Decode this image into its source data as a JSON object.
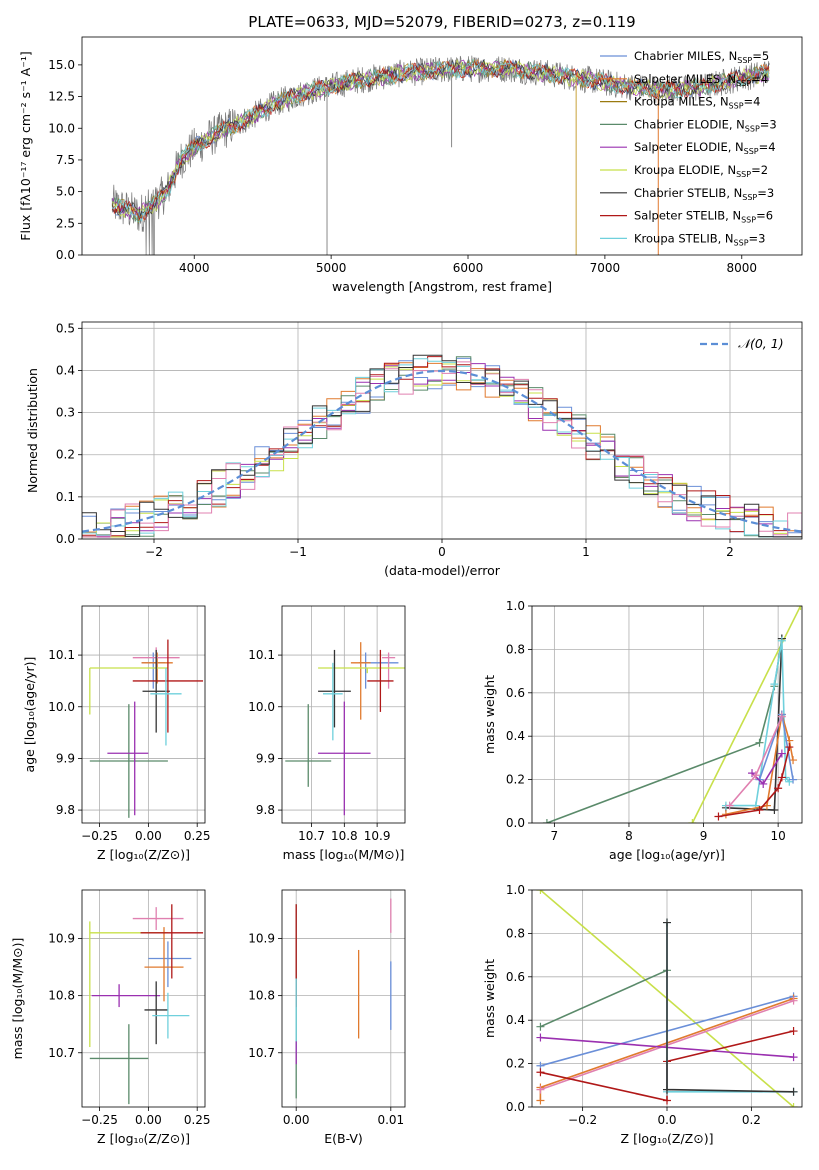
{
  "title": "PLATE=0633, MJD=52079, FIBERID=0273, z=0.119",
  "colors": {
    "chabrier_miles": "#6a8fd8",
    "salpeter_miles": "#e07a2e",
    "kroupa_miles": "#9a7a10",
    "chabrier_elodie": "#5a8a6a",
    "salpeter_elodie": "#9a30b0",
    "kroupa_elodie": "#c8e04a",
    "chabrier_stelib": "#333333",
    "salpeter_stelib": "#b01818",
    "kroupa_stelib": "#6fd0dc",
    "pink": "#e080b0",
    "gaussian": "#5b8ed6",
    "grid": "#b0b0b0"
  },
  "chart_data": [
    {
      "id": "spectrum",
      "type": "line",
      "xlabel": "wavelength [Angstrom, rest frame]",
      "ylabel": "Flux [fλ10⁻¹⁷ erg cm⁻² s⁻¹ A⁻¹]",
      "xlim": [
        3180,
        8440
      ],
      "ylim": [
        0,
        17.2
      ],
      "xticks": [
        4000,
        5000,
        6000,
        7000,
        8000
      ],
      "yticks": [
        0.0,
        2.5,
        5.0,
        7.5,
        10.0,
        12.5,
        15.0
      ],
      "legend_position": "right",
      "legend": [
        {
          "label": "Chabrier MILES, N",
          "sub": "SSP",
          "tail": "=5",
          "color": "#6a8fd8"
        },
        {
          "label": "Salpeter MILES, N",
          "sub": "SSP",
          "tail": "=4",
          "color": "#e07a2e"
        },
        {
          "label": "Kroupa MILES, N",
          "sub": "SSP",
          "tail": "=4",
          "color": "#9a7a10"
        },
        {
          "label": "Chabrier ELODIE, N",
          "sub": "SSP",
          "tail": "=3",
          "color": "#5a8a6a"
        },
        {
          "label": "Salpeter ELODIE, N",
          "sub": "SSP",
          "tail": "=4",
          "color": "#9a30b0"
        },
        {
          "label": "Kroupa ELODIE, N",
          "sub": "SSP",
          "tail": "=2",
          "color": "#c8e04a"
        },
        {
          "label": "Chabrier STELIB, N",
          "sub": "SSP",
          "tail": "=3",
          "color": "#333333"
        },
        {
          "label": "Salpeter STELIB, N",
          "sub": "SSP",
          "tail": "=6",
          "color": "#b01818"
        },
        {
          "label": "Kroupa STELIB, N",
          "sub": "SSP",
          "tail": "=3",
          "color": "#6fd0dc"
        }
      ],
      "continuum": [
        [
          3400,
          4.0
        ],
        [
          3500,
          3.6
        ],
        [
          3600,
          3.2
        ],
        [
          3700,
          4.0
        ],
        [
          3800,
          5.0
        ],
        [
          3900,
          7.5
        ],
        [
          4000,
          8.5
        ],
        [
          4200,
          9.8
        ],
        [
          4400,
          10.8
        ],
        [
          4600,
          12.0
        ],
        [
          4800,
          12.8
        ],
        [
          5000,
          13.3
        ],
        [
          5200,
          13.8
        ],
        [
          5500,
          14.3
        ],
        [
          5800,
          14.6
        ],
        [
          6000,
          14.7
        ],
        [
          6300,
          14.7
        ],
        [
          6600,
          14.3
        ],
        [
          6900,
          13.8
        ],
        [
          7100,
          13.4
        ],
        [
          7400,
          13.0
        ],
        [
          7700,
          13.2
        ],
        [
          8000,
          14.0
        ],
        [
          8200,
          14.4
        ]
      ],
      "data_drops": [
        [
          4970,
          0
        ],
        [
          5880,
          8.5
        ],
        [
          6790,
          0
        ],
        [
          7390,
          0
        ]
      ]
    },
    {
      "id": "residual_histogram",
      "type": "histogram",
      "xlabel": "(data-model)/error",
      "ylabel": "Normed distribution",
      "xlim": [
        -2.5,
        2.5
      ],
      "ylim": [
        0,
        0.515
      ],
      "xticks": [
        -2,
        -1,
        0,
        1,
        2
      ],
      "xtick_labels": [
        "−2",
        "−1",
        "0",
        "1",
        "2"
      ],
      "yticks": [
        0.0,
        0.1,
        0.2,
        0.3,
        0.4,
        0.5
      ],
      "legend": "𝒩(0, 1)",
      "legend_position": "top-right",
      "bin_width": 0.1
    },
    {
      "id": "age_vs_Z",
      "type": "scatter",
      "xlabel": "Z [log₁₀(Z/Z⊙)]",
      "ylabel": "age  [log₁₀(age/yr)]",
      "xlim": [
        -0.34,
        0.29
      ],
      "ylim": [
        9.775,
        10.195
      ],
      "xticks": [
        -0.25,
        0.0,
        0.25
      ],
      "xtick_labels": [
        "−0.25",
        "0.00",
        "0.25"
      ],
      "yticks": [
        9.8,
        9.9,
        10.0,
        10.1
      ],
      "points": [
        {
          "x": 0.025,
          "y": 10.085,
          "ex": [
            0.06,
            0.06
          ],
          "ey": [
            0.05,
            0.02
          ],
          "c": "chabrier_miles"
        },
        {
          "x": 0.045,
          "y": 10.085,
          "ex": [
            0.08,
            0.08
          ],
          "ey": [
            0.04,
            0.02
          ],
          "c": "salpeter_miles"
        },
        {
          "x": 0.04,
          "y": 10.095,
          "ex": [
            0.12,
            0.12
          ],
          "ey": [
            0.03,
            0.02
          ],
          "c": "pink"
        },
        {
          "x": -0.1,
          "y": 9.895,
          "ex": [
            0.2,
            0.2
          ],
          "ey": [
            0.11,
            0.11
          ],
          "c": "chabrier_elodie"
        },
        {
          "x": -0.07,
          "y": 9.91,
          "ex": [
            0.14,
            0.07
          ],
          "ey": [
            0.12,
            0.1
          ],
          "c": "salpeter_elodie"
        },
        {
          "x": -0.3,
          "y": 10.075,
          "ex": [
            0.0,
            0.4
          ],
          "ey": [
            0.09,
            0.0
          ],
          "c": "kroupa_elodie"
        },
        {
          "x": 0.04,
          "y": 10.03,
          "ex": [
            0.07,
            0.07
          ],
          "ey": [
            0.08,
            0.08
          ],
          "c": "chabrier_stelib"
        },
        {
          "x": 0.1,
          "y": 10.05,
          "ex": [
            0.18,
            0.18
          ],
          "ey": [
            0.1,
            0.08
          ],
          "c": "salpeter_stelib"
        },
        {
          "x": 0.09,
          "y": 10.025,
          "ex": [
            0.08,
            0.08
          ],
          "ey": [
            0.1,
            0.05
          ],
          "c": "kroupa_stelib"
        }
      ]
    },
    {
      "id": "age_vs_mass",
      "type": "scatter",
      "xlabel": "mass [log₁₀(M/M⊙)]",
      "ylabel": "",
      "xlim": [
        10.61,
        10.985
      ],
      "ylim": [
        9.775,
        10.195
      ],
      "xticks": [
        10.7,
        10.8,
        10.9
      ],
      "yticks": [
        9.8,
        9.9,
        10.0,
        10.1
      ],
      "points": [
        {
          "x": 10.865,
          "y": 10.085,
          "ex": [
            0.02,
            0.1
          ],
          "ey": [
            0.05,
            0.02
          ],
          "c": "chabrier_miles"
        },
        {
          "x": 10.85,
          "y": 10.085,
          "ex": [
            0.03,
            0.03
          ],
          "ey": [
            0.11,
            0.04
          ],
          "c": "salpeter_miles"
        },
        {
          "x": 10.935,
          "y": 10.095,
          "ex": [
            0.02,
            0.02
          ],
          "ey": [
            0.06,
            0.01
          ],
          "c": "pink"
        },
        {
          "x": 10.69,
          "y": 9.895,
          "ex": [
            0.07,
            0.07
          ],
          "ey": [
            0.05,
            0.11
          ],
          "c": "chabrier_elodie"
        },
        {
          "x": 10.8,
          "y": 9.91,
          "ex": [
            0.08,
            0.08
          ],
          "ey": [
            0.12,
            0.1
          ],
          "c": "salpeter_elodie"
        },
        {
          "x": 10.87,
          "y": 10.075,
          "ex": [
            0.15,
            0.12
          ],
          "ey": [
            0.01,
            0.0
          ],
          "c": "kroupa_elodie"
        },
        {
          "x": 10.77,
          "y": 10.03,
          "ex": [
            0.05,
            0.05
          ],
          "ey": [
            0.07,
            0.08
          ],
          "c": "chabrier_stelib"
        },
        {
          "x": 10.91,
          "y": 10.05,
          "ex": [
            0.04,
            0.04
          ],
          "ey": [
            0.06,
            0.06
          ],
          "c": "salpeter_stelib"
        },
        {
          "x": 10.765,
          "y": 10.025,
          "ex": [
            0.03,
            0.03
          ],
          "ey": [
            0.09,
            0.06
          ],
          "c": "kroupa_stelib"
        }
      ]
    },
    {
      "id": "mass_weight_vs_age",
      "type": "line",
      "xlabel": "age  [log₁₀(age/yr)]",
      "ylabel": "mass weight",
      "xlim": [
        6.7,
        10.32
      ],
      "ylim": [
        0,
        1.0
      ],
      "xticks": [
        7,
        8,
        9,
        10
      ],
      "yticks": [
        0.0,
        0.2,
        0.4,
        0.6,
        0.8,
        1.0
      ],
      "series": [
        {
          "c": "kroupa_elodie",
          "x": [
            8.85,
            10.3
          ],
          "y": [
            0.0,
            1.0
          ]
        },
        {
          "c": "chabrier_elodie",
          "x": [
            6.9,
            9.75,
            9.95,
            10.05
          ],
          "y": [
            0.0,
            0.37,
            0.63,
            0.85
          ]
        },
        {
          "c": "chabrier_stelib",
          "x": [
            9.3,
            9.95,
            10.05
          ],
          "y": [
            0.07,
            0.06,
            0.85
          ]
        },
        {
          "c": "kroupa_stelib",
          "x": [
            9.3,
            9.7,
            9.95,
            10.05,
            10.1,
            10.15
          ],
          "y": [
            0.08,
            0.08,
            0.64,
            0.84,
            0.21,
            0.19
          ]
        },
        {
          "c": "salpeter_miles",
          "x": [
            9.3,
            9.85,
            10.05,
            10.15,
            10.2
          ],
          "y": [
            0.04,
            0.08,
            0.5,
            0.38,
            0.29
          ]
        },
        {
          "c": "chabrier_miles",
          "x": [
            9.75,
            10.05,
            10.2
          ],
          "y": [
            0.2,
            0.5,
            0.2
          ]
        },
        {
          "c": "salpeter_elodie",
          "x": [
            9.65,
            9.8,
            10.05
          ],
          "y": [
            0.23,
            0.18,
            0.32
          ]
        },
        {
          "c": "pink",
          "x": [
            9.35,
            9.7,
            10.05
          ],
          "y": [
            0.08,
            0.22,
            0.49
          ]
        },
        {
          "c": "salpeter_stelib",
          "x": [
            9.2,
            9.75,
            10.0,
            10.05,
            10.15
          ],
          "y": [
            0.03,
            0.06,
            0.16,
            0.21,
            0.35
          ]
        }
      ]
    },
    {
      "id": "mass_vs_Z",
      "type": "scatter",
      "xlabel": "Z [log₁₀(Z/Z⊙)]",
      "ylabel": "mass [log₁₀(M/M⊙)]",
      "xlim": [
        -0.34,
        0.29
      ],
      "ylim": [
        10.605,
        10.985
      ],
      "xticks": [
        -0.25,
        0.0,
        0.25
      ],
      "xtick_labels": [
        "−0.25",
        "0.00",
        "0.25"
      ],
      "yticks": [
        10.7,
        10.8,
        10.9
      ],
      "points": [
        {
          "x": 0.1,
          "y": 10.865,
          "ex": [
            0.1,
            0.12
          ],
          "ey": [
            0.05,
            0.03
          ],
          "c": "chabrier_miles"
        },
        {
          "x": 0.08,
          "y": 10.85,
          "ex": [
            0.1,
            0.1
          ],
          "ey": [
            0.06,
            0.07
          ],
          "c": "salpeter_miles"
        },
        {
          "x": 0.04,
          "y": 10.935,
          "ex": [
            0.12,
            0.14
          ],
          "ey": [
            0.02,
            0.02
          ],
          "c": "pink"
        },
        {
          "x": -0.1,
          "y": 10.69,
          "ex": [
            0.2,
            0.1
          ],
          "ey": [
            0.08,
            0.06
          ],
          "c": "chabrier_elodie"
        },
        {
          "x": -0.15,
          "y": 10.8,
          "ex": [
            0.14,
            0.21
          ],
          "ey": [
            0.02,
            0.02
          ],
          "c": "salpeter_elodie"
        },
        {
          "x": -0.3,
          "y": 10.91,
          "ex": [
            0.0,
            0.4
          ],
          "ey": [
            0.2,
            0.02
          ],
          "c": "kroupa_elodie"
        },
        {
          "x": 0.04,
          "y": 10.775,
          "ex": [
            0.06,
            0.06
          ],
          "ey": [
            0.06,
            0.05
          ],
          "c": "chabrier_stelib"
        },
        {
          "x": 0.12,
          "y": 10.91,
          "ex": [
            0.16,
            0.16
          ],
          "ey": [
            0.08,
            0.05
          ],
          "c": "salpeter_stelib"
        },
        {
          "x": 0.1,
          "y": 10.765,
          "ex": [
            0.08,
            0.11
          ],
          "ey": [
            0.04,
            0.04
          ],
          "c": "kroupa_stelib"
        }
      ]
    },
    {
      "id": "mass_vs_EBV",
      "type": "scatter",
      "xlabel": "E(B-V)",
      "ylabel": "",
      "xlim": [
        -0.0015,
        0.0115
      ],
      "ylim": [
        10.605,
        10.985
      ],
      "xticks": [
        0.0,
        0.01
      ],
      "xtick_labels": [
        "0.00",
        "0.01"
      ],
      "yticks": [
        10.7,
        10.8,
        10.9
      ],
      "points": [
        {
          "x": 0.0,
          "y": 10.8,
          "ey": [
            0.18,
            0.16
          ],
          "c": "chabrier_elodie"
        },
        {
          "x": 0.0,
          "y": 10.86,
          "ey": [
            0.08,
            0.1
          ],
          "c": "salpeter_stelib"
        },
        {
          "x": 0.0,
          "y": 10.75,
          "ey": [
            0.05,
            0.08
          ],
          "c": "kroupa_stelib"
        },
        {
          "x": 0.0,
          "y": 10.7,
          "ey": [
            0.02,
            0.02
          ],
          "c": "salpeter_elodie"
        },
        {
          "x": 0.0066,
          "y": 10.8,
          "ey": [
            0.075,
            0.08
          ],
          "c": "salpeter_miles"
        },
        {
          "x": 0.01,
          "y": 10.94,
          "ey": [
            0.03,
            0.03
          ],
          "c": "pink"
        },
        {
          "x": 0.01,
          "y": 10.8,
          "ey": [
            0.06,
            0.06
          ],
          "c": "chabrier_miles"
        }
      ]
    },
    {
      "id": "mass_weight_vs_Z",
      "type": "line",
      "xlabel": "Z [log₁₀(Z/Z⊙)]",
      "ylabel": "mass weight",
      "xlim": [
        -0.32,
        0.32
      ],
      "ylim": [
        0,
        1.0
      ],
      "xticks": [
        -0.2,
        0.0,
        0.2
      ],
      "xtick_labels": [
        "−0.2",
        "0.0",
        "0.2"
      ],
      "yticks": [
        0.0,
        0.2,
        0.4,
        0.6,
        0.8,
        1.0
      ],
      "series": [
        {
          "c": "kroupa_elodie",
          "x": [
            -0.3,
            0.3
          ],
          "y": [
            1.0,
            0.0
          ]
        },
        {
          "c": "chabrier_elodie",
          "x": [
            -0.3,
            0.0
          ],
          "y": [
            0.37,
            0.63
          ]
        },
        {
          "c": "chabrier_miles",
          "x": [
            -0.3,
            0.3
          ],
          "y": [
            0.19,
            0.51
          ]
        },
        {
          "c": "salpeter_miles",
          "x": [
            -0.3,
            -0.3,
            0.3
          ],
          "y": [
            0.03,
            0.09,
            0.5
          ]
        },
        {
          "c": "pink",
          "x": [
            -0.3,
            0.3
          ],
          "y": [
            0.08,
            0.49
          ]
        },
        {
          "c": "salpeter_elodie",
          "x": [
            -0.3,
            0.3
          ],
          "y": [
            0.32,
            0.23
          ]
        },
        {
          "c": "salpeter_stelib",
          "x": [
            -0.3,
            0.0,
            0.0,
            0.3
          ],
          "y": [
            0.16,
            0.03,
            0.21,
            0.35
          ]
        },
        {
          "c": "kroupa_stelib",
          "x": [
            0.0,
            0.0,
            0.3
          ],
          "y": [
            0.85,
            0.07,
            0.07
          ]
        },
        {
          "c": "chabrier_stelib",
          "x": [
            0.0,
            0.0,
            0.3
          ],
          "y": [
            0.85,
            0.08,
            0.07
          ]
        }
      ]
    }
  ]
}
